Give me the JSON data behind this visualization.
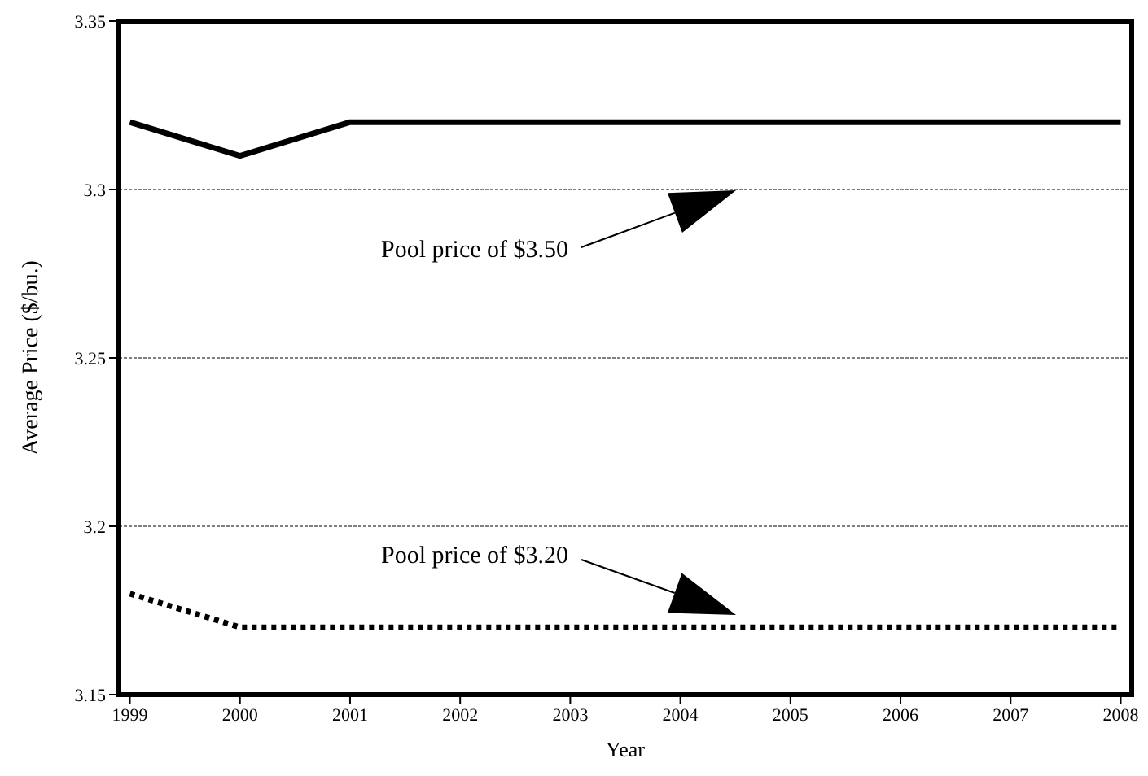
{
  "chart_data": {
    "type": "line",
    "xlabel": "Year",
    "ylabel": "Average Price ($/bu.)",
    "x": [
      1999,
      2000,
      2001,
      2002,
      2003,
      2004,
      2005,
      2006,
      2007,
      2008
    ],
    "series": [
      {
        "color": "#000000",
        "line_style": "solid",
        "values": [
          3.32,
          3.31,
          3.32,
          3.32,
          3.32,
          3.32,
          3.32,
          3.32,
          3.32,
          3.32
        ]
      },
      {
        "color": "#000000",
        "line_style": "dotted",
        "values": [
          3.18,
          3.17,
          3.17,
          3.17,
          3.17,
          3.17,
          3.17,
          3.17,
          3.17,
          3.17
        ]
      }
    ],
    "xlim": [
      1998.9,
      2008.1
    ],
    "xticks": [
      1999,
      2000,
      2001,
      2002,
      2003,
      2004,
      2005,
      2006,
      2007,
      2008
    ],
    "ylim": [
      3.15,
      3.35
    ],
    "yticks": [
      3.15,
      3.2,
      3.25,
      3.3,
      3.35
    ],
    "grid": "y",
    "marker": "none",
    "annotations": [
      "Pool price of $3.50",
      "Pool price of $3.20"
    ]
  }
}
